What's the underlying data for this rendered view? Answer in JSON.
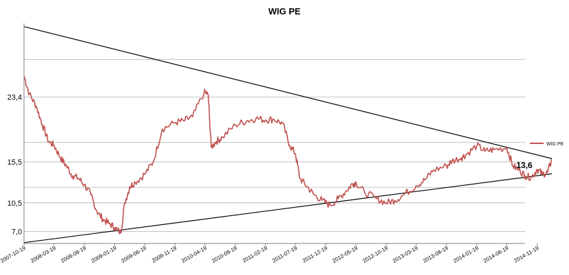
{
  "chart_data": {
    "type": "line",
    "title": "WIG PE",
    "xlabel": "",
    "ylabel": "",
    "grid": "horizontal",
    "legend_position": "right",
    "y_tick_labels": [
      "7,0",
      "10,5",
      "15,5",
      "23,4"
    ],
    "y_tick_values": [
      7.0,
      10.5,
      15.5,
      23.4
    ],
    "x_tick_labels": [
      "2007-10-19",
      "2008-03-19",
      "2008-08-19",
      "2009-01-19",
      "2009-06-19",
      "2009-11-19",
      "2010-04-19",
      "2010-09-19",
      "2011-02-19",
      "2011-07-19",
      "2011-12-19",
      "2012-05-19",
      "2012-10-19",
      "2013-03-19",
      "2013-08-19",
      "2014-01-19",
      "2014-06-19",
      "2014-11-19"
    ],
    "series": [
      {
        "name": "WIG PE",
        "color": "#c0504d",
        "x": [
          "2007-10-19",
          "2007-11-15",
          "2007-12-20",
          "2008-01-20",
          "2008-02-20",
          "2008-03-19",
          "2008-04-20",
          "2008-05-20",
          "2008-06-20",
          "2008-07-20",
          "2008-08-19",
          "2008-09-20",
          "2008-10-20",
          "2008-11-20",
          "2008-12-20",
          "2009-01-19",
          "2009-02-18",
          "2009-03-10",
          "2009-04-05",
          "2009-05-01",
          "2009-06-19",
          "2009-08-01",
          "2009-09-15",
          "2009-11-19",
          "2010-01-01",
          "2010-02-15",
          "2010-04-15",
          "2010-05-05",
          "2010-05-20",
          "2010-06-15",
          "2010-07-15",
          "2010-09-19",
          "2010-11-15",
          "2011-01-01",
          "2011-02-19",
          "2011-04-01",
          "2011-05-15",
          "2011-06-20",
          "2011-07-19",
          "2011-08-10",
          "2011-09-15",
          "2011-10-20",
          "2011-12-01",
          "2012-01-10",
          "2012-02-20",
          "2012-04-01",
          "2012-05-01",
          "2012-05-19",
          "2012-07-01",
          "2012-09-01",
          "2012-10-19",
          "2012-12-01",
          "2013-01-15",
          "2013-03-19",
          "2013-05-01",
          "2013-06-15",
          "2013-08-19",
          "2013-09-15",
          "2013-11-01",
          "2013-12-01",
          "2014-01-19",
          "2014-03-01",
          "2014-04-15",
          "2014-06-19",
          "2014-07-20",
          "2014-08-25",
          "2014-09-20",
          "2014-10-20",
          "2014-11-19",
          "2014-12-15",
          "2015-01-10",
          "2015-02-01"
        ],
        "y": [
          26.0,
          23.8,
          22.3,
          20.0,
          18.0,
          17.5,
          16.0,
          15.0,
          13.8,
          13.5,
          12.7,
          11.5,
          9.5,
          8.5,
          8.0,
          7.5,
          6.8,
          10.5,
          12.5,
          13.0,
          14.0,
          15.5,
          19.5,
          20.3,
          20.5,
          21.0,
          24.0,
          23.7,
          17.3,
          18.0,
          18.5,
          20.0,
          20.5,
          20.8,
          20.6,
          20.7,
          20.2,
          17.5,
          16.5,
          13.5,
          12.5,
          11.5,
          10.8,
          10.2,
          11.0,
          12.0,
          12.8,
          13.0,
          11.8,
          11.0,
          10.5,
          10.8,
          11.5,
          12.6,
          13.3,
          14.5,
          15.0,
          15.6,
          16.0,
          16.5,
          17.5,
          16.8,
          17.0,
          17.2,
          15.0,
          14.4,
          13.8,
          13.6,
          14.6,
          14.0,
          14.2,
          15.8
        ]
      }
    ],
    "trendlines": [
      {
        "name": "upper",
        "from": {
          "x": "2007-10-19",
          "y": 32.0
        },
        "to": {
          "x": "2015-02-01",
          "y": 15.9
        }
      },
      {
        "name": "lower",
        "from": {
          "x": "2007-10-19",
          "y": 5.65
        },
        "to": {
          "x": "2015-02-01",
          "y": 14.05
        }
      }
    ],
    "annotations": [
      {
        "text": "13,6",
        "x": "2014-10-20",
        "y": 13.6
      }
    ]
  }
}
